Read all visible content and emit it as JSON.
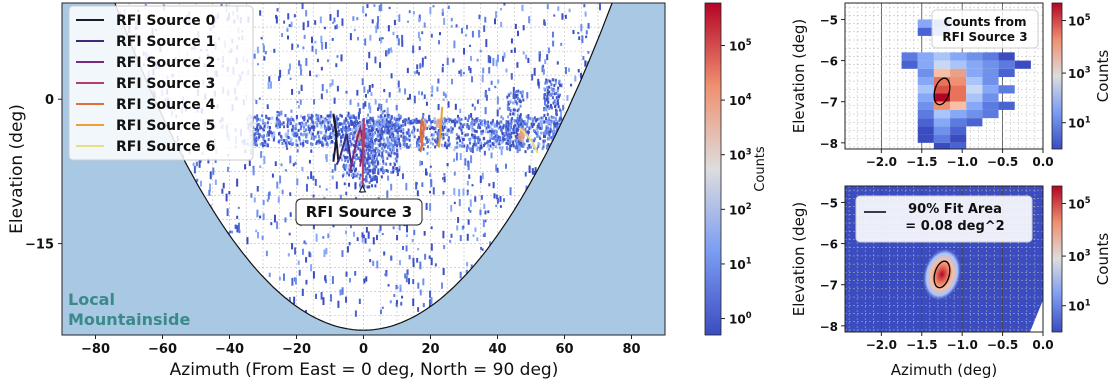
{
  "chart_data": [
    {
      "id": "main",
      "type": "heatmap",
      "title": "",
      "xlabel": "Azimuth (From East = 0 deg, North = 90 deg)",
      "ylabel": "Elevation (deg)",
      "xlim": [
        -90,
        90
      ],
      "ylim": [
        -24.5,
        10
      ],
      "xticks": [
        -80,
        -60,
        -40,
        -20,
        0,
        20,
        40,
        60,
        80
      ],
      "yticks": [
        0,
        -15
      ],
      "grid": true,
      "legend": {
        "placement": "top-left",
        "entries": [
          {
            "name": "RFI Source 0",
            "color": "#1a1a2e"
          },
          {
            "name": "RFI Source 1",
            "color": "#3b2a7a"
          },
          {
            "name": "RFI Source 2",
            "color": "#7a2a7e"
          },
          {
            "name": "RFI Source 3",
            "color": "#b0406a"
          },
          {
            "name": "RFI Source 4",
            "color": "#e0703a"
          },
          {
            "name": "RFI Source 5",
            "color": "#f0a030"
          },
          {
            "name": "RFI Source 6",
            "color": "#e8e080"
          }
        ]
      },
      "annotations": [
        {
          "text": "RFI Source 3",
          "x": 0,
          "y": -11.5
        },
        {
          "text": "Local\nMountainside",
          "x": -85,
          "y": -20
        }
      ],
      "source_tracks": [
        {
          "name": "RFI Source 0",
          "az": [
            -9,
            -8.5,
            -8,
            -8.5,
            -9,
            -8.5,
            -8,
            -7.5
          ],
          "el": [
            -6.5,
            -5.2,
            -3.8,
            -2.3,
            -1.5,
            -2.8,
            -4.5,
            -6.5
          ]
        },
        {
          "name": "RFI Source 1",
          "az": [
            -8,
            -7,
            -6,
            -5,
            -4.5,
            -3.5
          ],
          "el": [
            -6.8,
            -6.0,
            -4.8,
            -3.6,
            -4.8,
            -7.0
          ]
        },
        {
          "name": "RFI Source 2",
          "az": [
            -4,
            -3,
            -2,
            -1,
            0,
            -1
          ],
          "el": [
            -7.5,
            -5.8,
            -4.2,
            -3.0,
            -4.5,
            -7.0
          ]
        },
        {
          "name": "RFI Source 3",
          "az": [
            -0.3,
            -0.2,
            0.0,
            0.2,
            0.1,
            -0.3
          ],
          "el": [
            -9.3,
            -7.5,
            -5.5,
            -3.5,
            -2.0,
            -5.0
          ]
        },
        {
          "name": "RFI Source 4",
          "az": [
            17,
            17.5,
            18,
            17.5,
            17,
            17.5
          ],
          "el": [
            -5.5,
            -4.5,
            -3.0,
            -2.0,
            -3.5,
            -5.0
          ]
        },
        {
          "name": "RFI Source 5",
          "az": [
            22.5,
            23,
            23.5,
            23,
            22.5
          ],
          "el": [
            -5.0,
            -3.2,
            -0.8,
            -3.0,
            -4.8
          ]
        },
        {
          "name": "RFI Source 6",
          "az": [
            46.5,
            48.5,
            50.5,
            52
          ],
          "el": [
            -3.0,
            -3.6,
            -4.5,
            -5.6
          ]
        }
      ],
      "colorbar": {
        "label": "Counts",
        "scale": "log",
        "range": [
          0.5,
          600000
        ],
        "ticks": [
          "10^0",
          "10^1",
          "10^2",
          "10^3",
          "10^4",
          "10^5"
        ]
      },
      "mountainside": {
        "fill": "#a8c8e4",
        "edge_color": "#111111"
      },
      "colors": {
        "low": "#3b4cc0",
        "mid": "#dddddd",
        "high": "#b40426",
        "grid": "#bbbbbb"
      }
    },
    {
      "id": "inset_top",
      "type": "heatmap",
      "xlabel": "",
      "ylabel": "Elevation (deg)",
      "xlim": [
        -2.45,
        0.0
      ],
      "ylim": [
        -8.15,
        -4.6
      ],
      "xticks": [
        -2.0,
        -1.5,
        -1.0,
        -0.5,
        0.0
      ],
      "yticks": [
        -5,
        -6,
        -7,
        -8
      ],
      "annotation": "Counts from\nRFI Source 3",
      "ellipse": {
        "cx": -1.25,
        "cy": -6.75,
        "rx": 0.09,
        "ry": 0.33
      },
      "colorbar": {
        "label": "Counts",
        "scale": "log",
        "ticks": [
          "10^1",
          "10^3",
          "10^5"
        ]
      }
    },
    {
      "id": "inset_bottom",
      "type": "heatmap",
      "xlabel": "Azimuth (deg)",
      "ylabel": "Elevation (deg)",
      "xlim": [
        -2.45,
        0.0
      ],
      "ylim": [
        -8.15,
        -4.6
      ],
      "xticks": [
        -2.0,
        -1.5,
        -1.0,
        -0.5,
        0.0
      ],
      "yticks": [
        -5,
        -6,
        -7,
        -8
      ],
      "legend": {
        "placement": "top",
        "entries": [
          {
            "name": "90% Fit Area\n= 0.08 deg^2",
            "color": "#000000"
          }
        ]
      },
      "ellipse": {
        "cx": -1.25,
        "cy": -6.75,
        "rx": 0.09,
        "ry": 0.33
      },
      "colorbar": {
        "label": "Counts",
        "scale": "log",
        "ticks": [
          "10^1",
          "10^3",
          "10^5"
        ]
      }
    }
  ]
}
